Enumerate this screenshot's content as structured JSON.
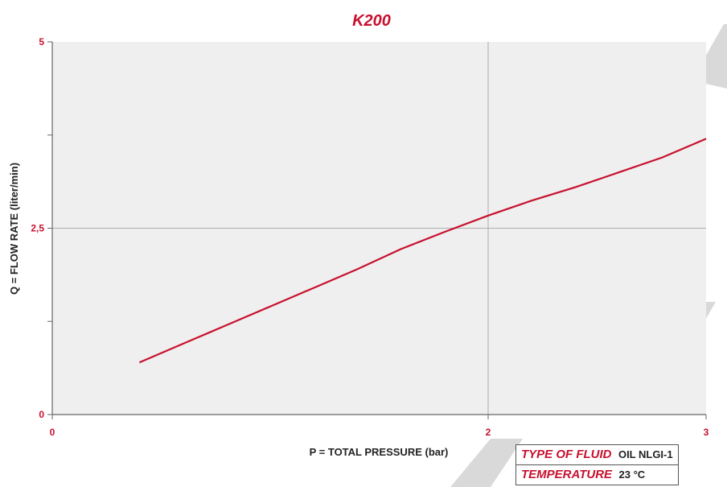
{
  "chart_data": {
    "type": "line",
    "title": "K200",
    "xlabel": "P = TOTAL PRESSURE (bar)",
    "ylabel": "Q = FLOW RATE (liter/min)",
    "xlim": [
      0,
      3
    ],
    "ylim": [
      0,
      5
    ],
    "xticks": [
      "0",
      "2",
      "3"
    ],
    "xtick_values": [
      0,
      2,
      3
    ],
    "yticks": [
      "0",
      "2,5",
      "5"
    ],
    "ytick_values": [
      0,
      2.5,
      5
    ],
    "grid": true,
    "series_color": "#c8102e",
    "series": [
      {
        "x": [
          0.4,
          0.6,
          0.8,
          1.0,
          1.2,
          1.4,
          1.6,
          1.8,
          2.0,
          2.2,
          2.4,
          2.6,
          2.8,
          3.0
        ],
        "y": [
          0.7,
          0.95,
          1.2,
          1.45,
          1.7,
          1.95,
          2.22,
          2.45,
          2.67,
          2.87,
          3.05,
          3.25,
          3.45,
          3.7
        ]
      }
    ]
  },
  "info": {
    "fluid_label": "TYPE OF FLUID",
    "fluid_value": "OIL NLGI-1",
    "temp_label": "TEMPERATURE",
    "temp_value": "23 °C"
  }
}
